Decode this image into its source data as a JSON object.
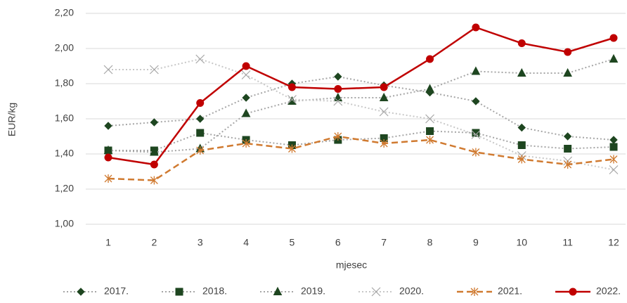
{
  "chart_data": {
    "type": "line",
    "y_label": "EUR/kg",
    "x_label": "mjesec",
    "categories": [
      "1",
      "2",
      "3",
      "4",
      "5",
      "6",
      "7",
      "8",
      "9",
      "10",
      "11",
      "12"
    ],
    "ylim": [
      1.0,
      2.2
    ],
    "yticks": [
      {
        "value": 1.0,
        "label": "1,00"
      },
      {
        "value": 1.2,
        "label": "1,20"
      },
      {
        "value": 1.4,
        "label": "1,40"
      },
      {
        "value": 1.6,
        "label": "1,60"
      },
      {
        "value": 1.8,
        "label": "1,80"
      },
      {
        "value": 2.0,
        "label": "2,00"
      },
      {
        "value": 2.2,
        "label": "2,20"
      }
    ],
    "grid": true,
    "legend": "bottom",
    "series": [
      {
        "name": "2017.",
        "color": "#a6a6a6",
        "marker_color": "#1e4620",
        "marker": "diamond",
        "dash": "dotted",
        "values": [
          1.56,
          1.58,
          1.6,
          1.72,
          1.8,
          1.84,
          1.79,
          1.75,
          1.7,
          1.55,
          1.5,
          1.48
        ]
      },
      {
        "name": "2018.",
        "color": "#a6a6a6",
        "marker_color": "#1e4620",
        "marker": "square",
        "dash": "dotted",
        "values": [
          1.42,
          1.42,
          1.52,
          1.48,
          1.45,
          1.48,
          1.49,
          1.53,
          1.52,
          1.45,
          1.43,
          1.44
        ]
      },
      {
        "name": "2019.",
        "color": "#a6a6a6",
        "marker_color": "#1e4620",
        "marker": "triangle",
        "dash": "dotted",
        "values": [
          1.42,
          1.41,
          1.43,
          1.63,
          1.7,
          1.72,
          1.72,
          1.77,
          1.87,
          1.86,
          1.86,
          1.94
        ]
      },
      {
        "name": "2020.",
        "color": "#c8c8c8",
        "marker_color": "#a6a6a6",
        "marker": "x",
        "dash": "dotted",
        "values": [
          1.88,
          1.88,
          1.94,
          1.85,
          1.71,
          1.7,
          1.64,
          1.6,
          1.51,
          1.39,
          1.36,
          1.31
        ]
      },
      {
        "name": "2021.",
        "color": "#d07a30",
        "marker_color": "#d07a30",
        "marker": "star",
        "dash": "dashed",
        "values": [
          1.26,
          1.25,
          1.42,
          1.46,
          1.43,
          1.5,
          1.46,
          1.48,
          1.41,
          1.37,
          1.34,
          1.37
        ]
      },
      {
        "name": "2022.",
        "color": "#c00000",
        "marker_color": "#c00000",
        "marker": "circle",
        "dash": "solid",
        "values": [
          1.38,
          1.34,
          1.69,
          1.9,
          1.78,
          1.77,
          1.78,
          1.94,
          2.12,
          2.03,
          1.98,
          2.06
        ]
      }
    ]
  }
}
